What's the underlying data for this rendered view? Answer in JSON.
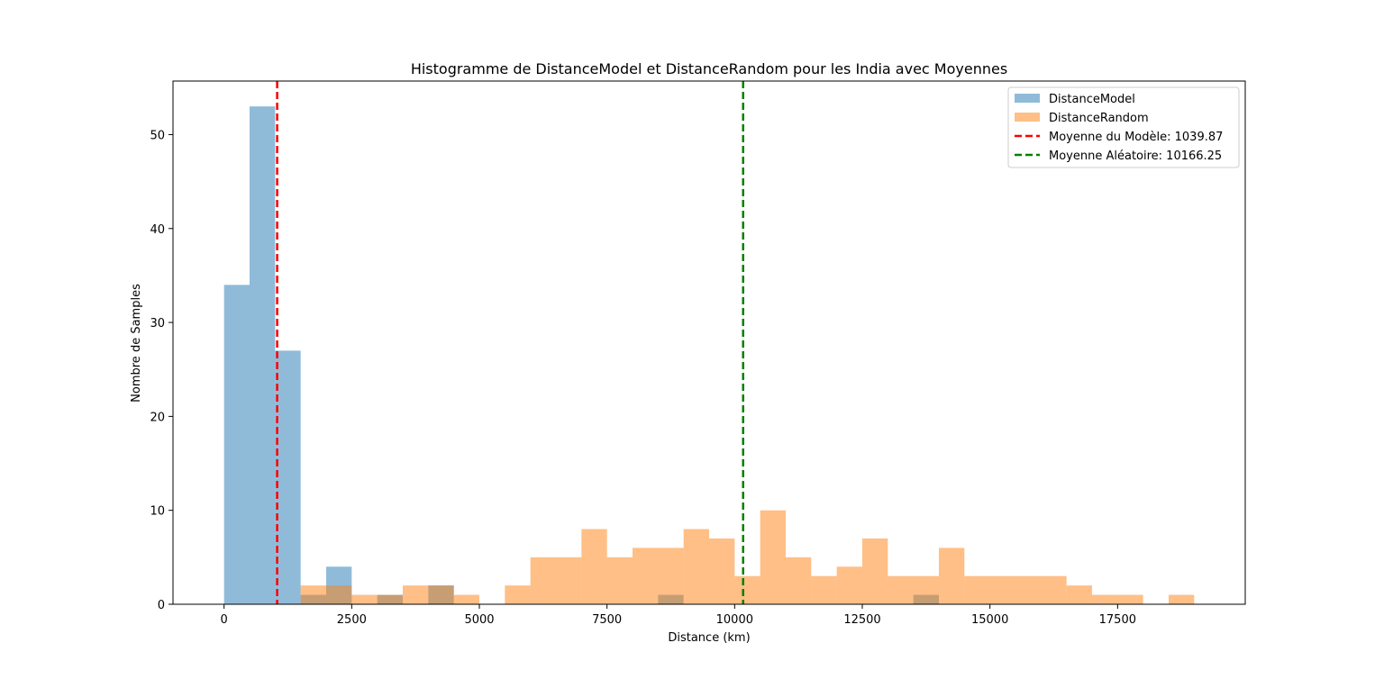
{
  "chart_data": {
    "type": "histogram",
    "title": "Histogramme de DistanceModel et DistanceRandom pour les India avec Moyennes",
    "xlabel": "Distance (km)",
    "ylabel": "Nombre de Samples",
    "xlim": [
      -1000,
      20000
    ],
    "ylim": [
      0,
      55.7
    ],
    "xticks": [
      0,
      2500,
      5000,
      7500,
      10000,
      12500,
      15000,
      17500
    ],
    "yticks": [
      0,
      10,
      20,
      30,
      40,
      50
    ],
    "grid": false,
    "legend_position": "top-right",
    "series": [
      {
        "name": "DistanceModel",
        "color": "#1f77b4",
        "alpha": 0.5,
        "bins": [
          {
            "x0": 0,
            "x1": 500,
            "count": 34
          },
          {
            "x0": 500,
            "x1": 1000,
            "count": 53
          },
          {
            "x0": 1000,
            "x1": 1500,
            "count": 27
          },
          {
            "x0": 1500,
            "x1": 2000,
            "count": 1
          },
          {
            "x0": 2000,
            "x1": 2500,
            "count": 4
          },
          {
            "x0": 3000,
            "x1": 3500,
            "count": 1
          },
          {
            "x0": 4000,
            "x1": 4500,
            "count": 2
          },
          {
            "x0": 8500,
            "x1": 9000,
            "count": 1
          },
          {
            "x0": 13500,
            "x1": 14000,
            "count": 1
          }
        ]
      },
      {
        "name": "DistanceRandom",
        "color": "#ff7f0e",
        "alpha": 0.5,
        "bins": [
          {
            "x0": 1500,
            "x1": 2000,
            "count": 2
          },
          {
            "x0": 2000,
            "x1": 2500,
            "count": 2
          },
          {
            "x0": 2500,
            "x1": 3000,
            "count": 1
          },
          {
            "x0": 3000,
            "x1": 3500,
            "count": 1
          },
          {
            "x0": 3500,
            "x1": 4000,
            "count": 2
          },
          {
            "x0": 4000,
            "x1": 4500,
            "count": 2
          },
          {
            "x0": 4500,
            "x1": 5000,
            "count": 1
          },
          {
            "x0": 5500,
            "x1": 6000,
            "count": 2
          },
          {
            "x0": 6000,
            "x1": 6500,
            "count": 5
          },
          {
            "x0": 6500,
            "x1": 7000,
            "count": 5
          },
          {
            "x0": 7000,
            "x1": 7500,
            "count": 8
          },
          {
            "x0": 7500,
            "x1": 8000,
            "count": 5
          },
          {
            "x0": 8000,
            "x1": 8500,
            "count": 6
          },
          {
            "x0": 8500,
            "x1": 9000,
            "count": 6
          },
          {
            "x0": 9000,
            "x1": 9500,
            "count": 8
          },
          {
            "x0": 9500,
            "x1": 10000,
            "count": 7
          },
          {
            "x0": 10000,
            "x1": 10500,
            "count": 3
          },
          {
            "x0": 10500,
            "x1": 11000,
            "count": 10
          },
          {
            "x0": 11000,
            "x1": 11500,
            "count": 5
          },
          {
            "x0": 11500,
            "x1": 12000,
            "count": 3
          },
          {
            "x0": 12000,
            "x1": 12500,
            "count": 4
          },
          {
            "x0": 12500,
            "x1": 13000,
            "count": 7
          },
          {
            "x0": 13000,
            "x1": 13500,
            "count": 3
          },
          {
            "x0": 13500,
            "x1": 14000,
            "count": 3
          },
          {
            "x0": 14000,
            "x1": 14500,
            "count": 6
          },
          {
            "x0": 14500,
            "x1": 15000,
            "count": 3
          },
          {
            "x0": 15000,
            "x1": 15500,
            "count": 3
          },
          {
            "x0": 15500,
            "x1": 16000,
            "count": 3
          },
          {
            "x0": 16000,
            "x1": 16500,
            "count": 3
          },
          {
            "x0": 16500,
            "x1": 17000,
            "count": 2
          },
          {
            "x0": 17000,
            "x1": 17500,
            "count": 1
          },
          {
            "x0": 17500,
            "x1": 18000,
            "count": 1
          },
          {
            "x0": 18500,
            "x1": 19000,
            "count": 1
          }
        ]
      }
    ],
    "mean_lines": [
      {
        "label": "Moyenne du Modèle: 1039.87",
        "value": 1039.87,
        "color": "#ff0000",
        "style": "dashed"
      },
      {
        "label": "Moyenne Aléatoire: 10166.25",
        "value": 10166.25,
        "color": "#008000",
        "style": "dashed"
      }
    ]
  }
}
